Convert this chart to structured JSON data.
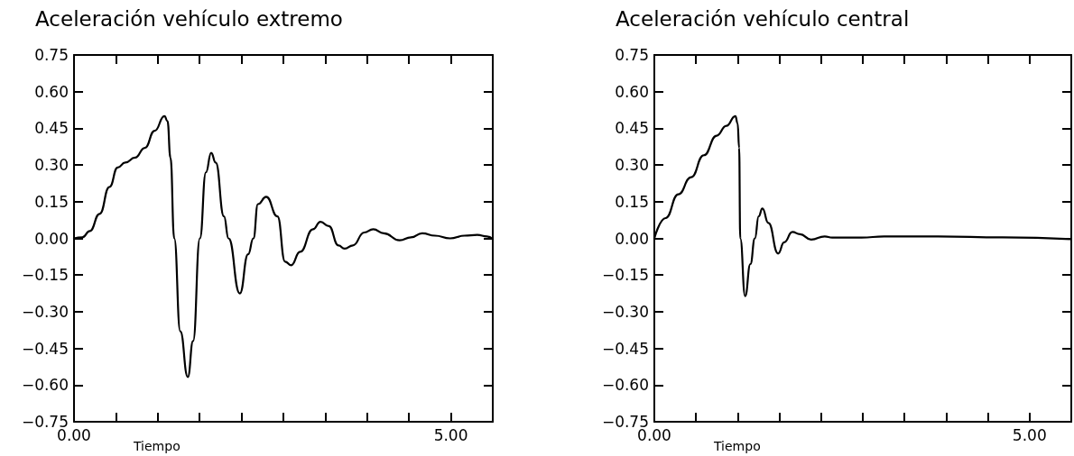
{
  "chart_data": [
    {
      "type": "line",
      "title": "Aceleración vehículo extremo",
      "xlabel": "Tiempo",
      "xlim": [
        0,
        5.556
      ],
      "xticks": [
        {
          "value": 0,
          "label": "0.00"
        },
        {
          "value": 0.556,
          "label": null
        },
        {
          "value": 1.111,
          "label": null
        },
        {
          "value": 1.667,
          "label": null
        },
        {
          "value": 2.222,
          "label": null
        },
        {
          "value": 2.778,
          "label": null
        },
        {
          "value": 3.333,
          "label": null
        },
        {
          "value": 3.889,
          "label": null
        },
        {
          "value": 4.444,
          "label": null
        },
        {
          "value": 5,
          "label": "5.00"
        }
      ],
      "ylim": [
        -0.75,
        0.75
      ],
      "yticks": [
        {
          "value": -0.75,
          "label": "−0.75"
        },
        {
          "value": -0.6,
          "label": "−0.60"
        },
        {
          "value": -0.45,
          "label": "−0.45"
        },
        {
          "value": -0.3,
          "label": "−0.30"
        },
        {
          "value": -0.15,
          "label": "−0.15"
        },
        {
          "value": 0,
          "label": "0.00"
        },
        {
          "value": 0.15,
          "label": "0.15"
        },
        {
          "value": 0.3,
          "label": "0.30"
        },
        {
          "value": 0.45,
          "label": "0.45"
        },
        {
          "value": 0.6,
          "label": "0.60"
        },
        {
          "value": 0.75,
          "label": "0.75"
        }
      ],
      "grid": false,
      "marker": "none",
      "line_style": "solid",
      "series": [
        {
          "color": "#000000",
          "x": [
            0,
            0.11,
            0.21,
            0.34,
            0.47,
            0.58,
            0.68,
            0.81,
            0.94,
            1.07,
            1.2,
            1.24,
            1.28,
            1.33,
            1.41,
            1.51,
            1.58,
            1.67,
            1.75,
            1.82,
            1.88,
            1.99,
            2.05,
            2.2,
            2.31,
            2.38,
            2.44,
            2.55,
            2.7,
            2.8,
            2.88,
            3.0,
            3.17,
            3.27,
            3.38,
            3.51,
            3.59,
            3.7,
            3.85,
            3.97,
            4.11,
            4.32,
            4.47,
            4.62,
            4.79,
            4.99,
            5.18,
            5.35,
            5.48,
            5.556
          ],
          "values": [
            0,
            0.004,
            0.03,
            0.1,
            0.21,
            0.29,
            0.31,
            0.33,
            0.37,
            0.44,
            0.5,
            0.48,
            0.33,
            0,
            -0.38,
            -0.567,
            -0.42,
            0,
            0.27,
            0.35,
            0.31,
            0.09,
            0,
            -0.225,
            -0.065,
            0,
            0.14,
            0.17,
            0.09,
            -0.095,
            -0.11,
            -0.055,
            0.037,
            0.068,
            0.05,
            -0.029,
            -0.042,
            -0.029,
            0.024,
            0.037,
            0.021,
            -0.008,
            0.004,
            0.021,
            0.011,
            0,
            0.011,
            0.014,
            0.008,
            -0.003
          ]
        }
      ]
    },
    {
      "type": "line",
      "title": "Aceleración vehículo central",
      "xlabel": "Tiempo",
      "xlim": [
        0,
        5.556
      ],
      "xticks": [
        {
          "value": 0,
          "label": "0.00"
        },
        {
          "value": 0.556,
          "label": null
        },
        {
          "value": 1.111,
          "label": null
        },
        {
          "value": 1.667,
          "label": null
        },
        {
          "value": 2.222,
          "label": null
        },
        {
          "value": 2.778,
          "label": null
        },
        {
          "value": 3.333,
          "label": null
        },
        {
          "value": 3.889,
          "label": null
        },
        {
          "value": 4.444,
          "label": null
        },
        {
          "value": 5,
          "label": "5.00"
        }
      ],
      "ylim": [
        -0.75,
        0.75
      ],
      "yticks": [
        {
          "value": -0.75,
          "label": "−0.75"
        },
        {
          "value": -0.6,
          "label": "−0.60"
        },
        {
          "value": -0.45,
          "label": "−0.45"
        },
        {
          "value": -0.3,
          "label": "−0.30"
        },
        {
          "value": -0.15,
          "label": "−0.15"
        },
        {
          "value": 0,
          "label": "0.00"
        },
        {
          "value": 0.15,
          "label": "0.15"
        },
        {
          "value": 0.3,
          "label": "0.30"
        },
        {
          "value": 0.45,
          "label": "0.45"
        },
        {
          "value": 0.6,
          "label": "0.60"
        },
        {
          "value": 0.75,
          "label": "0.75"
        }
      ],
      "grid": false,
      "marker": "none",
      "line_style": "solid",
      "series": [
        {
          "color": "#000000",
          "x": [
            0,
            0.15,
            0.32,
            0.49,
            0.66,
            0.83,
            0.96,
            1.08,
            1.11,
            1.13,
            1.145,
            1.21,
            1.28,
            1.34,
            1.39,
            1.44,
            1.52,
            1.65,
            1.73,
            1.84,
            1.94,
            2.09,
            2.27,
            2.37,
            2.76,
            3.06,
            3.78,
            4.64,
            5.556
          ],
          "values": [
            0,
            0.083,
            0.18,
            0.25,
            0.34,
            0.42,
            0.46,
            0.5,
            0.47,
            0.37,
            0,
            -0.236,
            -0.105,
            0,
            0.09,
            0.122,
            0.063,
            -0.062,
            -0.016,
            0.026,
            0.017,
            -0.005,
            0.008,
            0.003,
            0.003,
            0.008,
            0.008,
            0.004,
            -0.003
          ]
        }
      ]
    }
  ]
}
